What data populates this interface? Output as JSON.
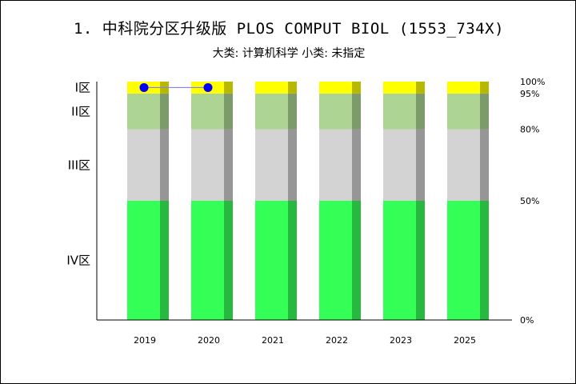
{
  "title": "1. 中科院分区升级版 PLOS COMPUT BIOL (1553_734X)",
  "subtitle": "大类: 计算机科学 小类: 未指定",
  "chart_data": {
    "type": "bar",
    "stacked": true,
    "categories": [
      "2019",
      "2020",
      "2021",
      "2022",
      "2023",
      "2025"
    ],
    "zones": [
      {
        "label": "IV区",
        "from": 0,
        "to": 50,
        "color": "#33ff57",
        "shade": "#26b83f"
      },
      {
        "label": "III区",
        "from": 50,
        "to": 80,
        "color": "#d3d3d3",
        "shade": "#969696"
      },
      {
        "label": "II区",
        "from": 80,
        "to": 95,
        "color": "#aed494",
        "shade": "#7c9a6a"
      },
      {
        "label": "I区",
        "from": 95,
        "to": 100,
        "color": "#ffff00",
        "shade": "#b8b800"
      }
    ],
    "right_ticks": [
      "100%",
      "95%",
      "80%",
      "50%",
      "0%"
    ],
    "right_tick_values": [
      100,
      95,
      80,
      50,
      0
    ],
    "ylim": [
      0,
      100
    ],
    "marker_series": {
      "x": [
        "2019",
        "2020"
      ],
      "y": [
        97.5,
        97.5
      ],
      "zone": "I区",
      "color": "#0000ff",
      "line_color": "#8080ff"
    }
  }
}
